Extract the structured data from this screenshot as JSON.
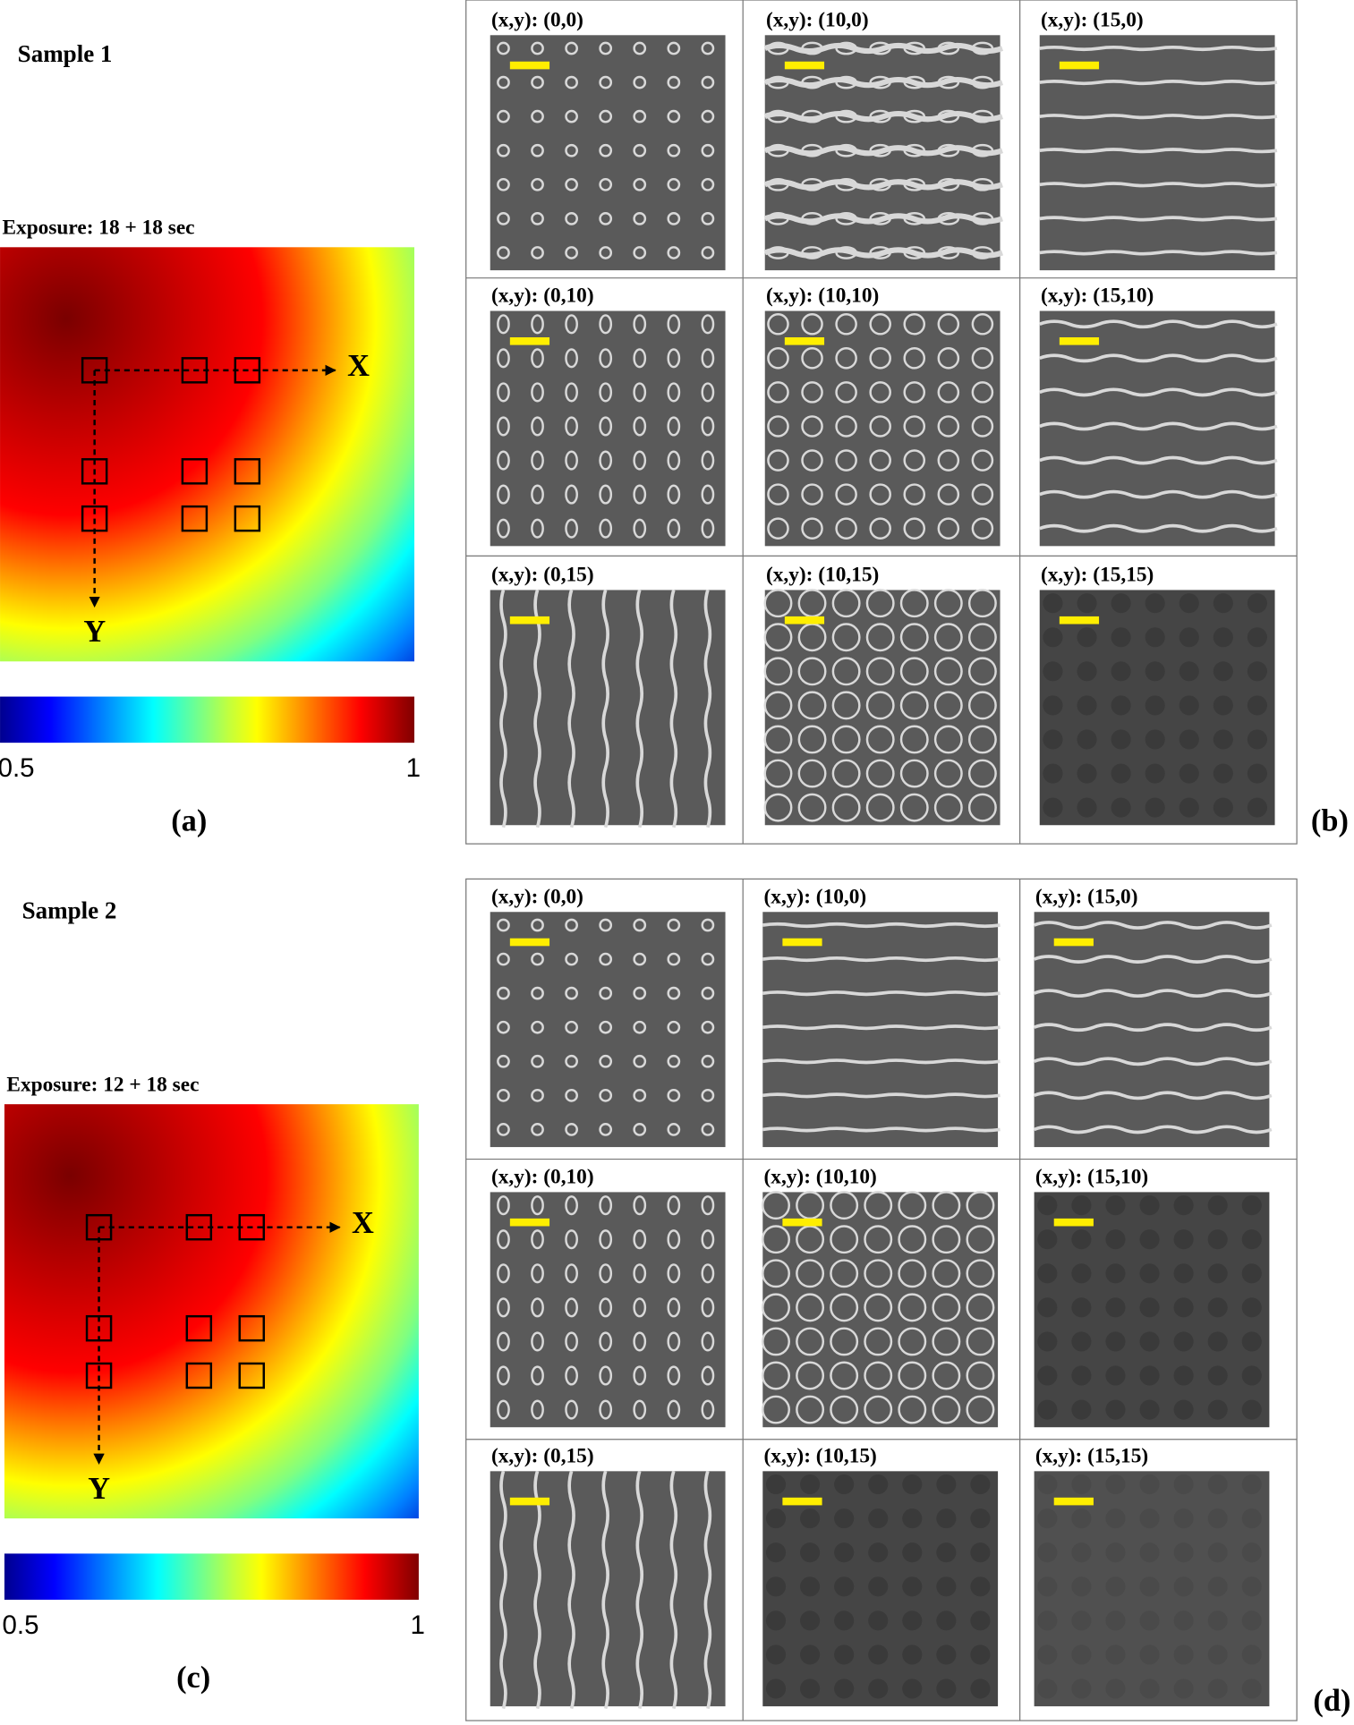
{
  "panels": [
    {
      "title": "Sample 1",
      "exposure": "Exposure: 18 + 18 sec",
      "x_label": "X",
      "y_label": "Y",
      "colorbar_min": "0.5",
      "colorbar_max": "1",
      "panel_label": "(a)"
    },
    {
      "title": "Sample 2",
      "exposure": "Exposure: 12 + 18 sec",
      "x_label": "X",
      "y_label": "Y",
      "colorbar_min": "0.5",
      "colorbar_max": "1",
      "panel_label": "(c)"
    }
  ],
  "grids": [
    {
      "panel_label": "(b)",
      "cells": [
        "(x,y): (0,0)",
        "(x,y): (10,0)",
        "(x,y): (15,0)",
        "(x,y): (0,10)",
        "(x,y): (10,10)",
        "(x,y): (15,10)",
        "(x,y): (0,15)",
        "(x,y): (10,15)",
        "(x,y): (15,15)"
      ]
    },
    {
      "panel_label": "(d)",
      "cells": [
        "(x,y): (0,0)",
        "(x,y): (10,0)",
        "(x,y): (15,0)",
        "(x,y): (0,10)",
        "(x,y): (10,10)",
        "(x,y): (15,10)",
        "(x,y): (0,15)",
        "(x,y): (10,15)",
        "(x,y): (15,15)"
      ]
    }
  ]
}
